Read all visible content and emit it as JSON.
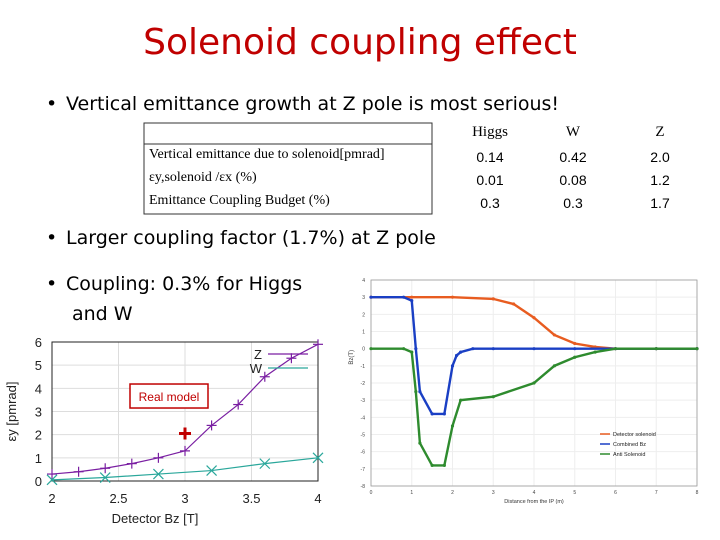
{
  "slide": {
    "title": "Solenoid coupling effect",
    "bullets": [
      "Vertical emittance growth at Z pole is most serious!",
      "Larger coupling factor (1.7%) at Z pole",
      "Coupling: 0.3% for Higgs",
      "and W"
    ]
  },
  "table": {
    "columns": [
      "Higgs",
      "W",
      "Z"
    ],
    "rows": [
      {
        "label": "Vertical emittance due to solenoid[pmrad]",
        "values": [
          "0.14",
          "0.42",
          "2.0"
        ]
      },
      {
        "label": "εy,solenoid /εx (%)",
        "values": [
          "0.01",
          "0.08",
          "1.2"
        ]
      },
      {
        "label": "Emittance Coupling Budget (%)",
        "values": [
          "0.3",
          "0.3",
          "1.7"
        ]
      }
    ]
  },
  "chart_data": [
    {
      "type": "line",
      "xlabel": "Detector Bz [T]",
      "ylabel": "εy [pmrad]",
      "xlim": [
        2,
        4
      ],
      "ylim": [
        0,
        6
      ],
      "xticks": [
        "2",
        "2.5",
        "3",
        "3.5",
        "4"
      ],
      "yticks": [
        "0",
        "1",
        "2",
        "3",
        "4",
        "5",
        "6"
      ],
      "series": [
        {
          "name": "Z",
          "color": "#7a1fa2",
          "marker": "+",
          "x": [
            2.0,
            2.2,
            2.4,
            2.6,
            2.8,
            3.0,
            3.2,
            3.4,
            3.6,
            3.8,
            4.0
          ],
          "y": [
            0.3,
            0.4,
            0.55,
            0.75,
            1.0,
            1.3,
            2.4,
            3.3,
            4.5,
            5.3,
            5.9
          ]
        },
        {
          "name": "W",
          "color": "#2aa79b",
          "marker": "x",
          "x": [
            2.0,
            2.4,
            2.8,
            3.2,
            3.6,
            4.0
          ],
          "y": [
            0.05,
            0.15,
            0.3,
            0.45,
            0.75,
            1.0
          ]
        }
      ],
      "annotation": {
        "text": "Real model",
        "color": "#c00000",
        "x": 3.0,
        "y": 2.05
      }
    },
    {
      "type": "line",
      "ylabel": "Bz(T)",
      "xlabel": "Distance from the IP (m)",
      "xlim": [
        0,
        8
      ],
      "ylim": [
        -8,
        4
      ],
      "series": [
        {
          "name": "Detector solenoid",
          "color": "#e85c20",
          "x": [
            0,
            1,
            2,
            3,
            3.5,
            4,
            4.5,
            5,
            5.5,
            6,
            7,
            8
          ],
          "y": [
            3,
            3,
            3,
            2.9,
            2.6,
            1.8,
            0.8,
            0.3,
            0.1,
            0,
            0,
            0
          ]
        },
        {
          "name": "Combined Bz",
          "color": "#1a3fc4",
          "x": [
            0,
            0.8,
            1.0,
            1.1,
            1.2,
            1.5,
            1.8,
            2.0,
            2.1,
            2.2,
            2.5,
            3,
            4,
            5,
            6,
            7,
            8
          ],
          "y": [
            3,
            3,
            2.8,
            0,
            -2.5,
            -3.8,
            -3.8,
            -1.0,
            -0.4,
            -0.2,
            0,
            0,
            0,
            0,
            0,
            0,
            0
          ]
        },
        {
          "name": "Anti Solenoid",
          "color": "#2e8b2e",
          "x": [
            0,
            0.8,
            1.0,
            1.1,
            1.2,
            1.5,
            1.8,
            2.0,
            2.2,
            3,
            4,
            4.5,
            5,
            5.5,
            6,
            7,
            8
          ],
          "y": [
            0,
            0,
            -0.2,
            -2.5,
            -5.5,
            -6.8,
            -6.8,
            -4.5,
            -3.0,
            -2.8,
            -2.0,
            -1.0,
            -0.5,
            -0.2,
            0,
            0,
            0
          ]
        }
      ]
    }
  ]
}
